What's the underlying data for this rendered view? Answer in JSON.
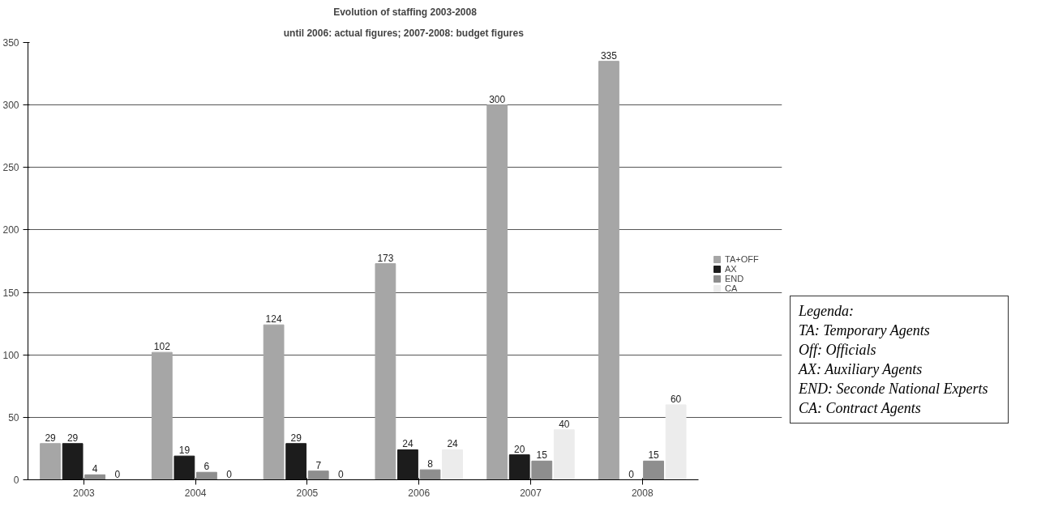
{
  "chart_data": {
    "type": "bar",
    "title": "Evolution of staffing 2003-2008",
    "subtitle": "until 2006: actual figures;  2007-2008: budget figures",
    "categories": [
      "2003",
      "2004",
      "2005",
      "2006",
      "2007",
      "2008"
    ],
    "series": [
      {
        "name": "TA+OFF",
        "color": "#a6a6a6",
        "values": [
          29,
          102,
          124,
          173,
          300,
          335
        ]
      },
      {
        "name": "AX",
        "color": "#1c1c1c",
        "values": [
          29,
          19,
          29,
          24,
          20,
          0
        ]
      },
      {
        "name": "END",
        "color": "#8e8e8e",
        "values": [
          4,
          6,
          7,
          8,
          15,
          15
        ]
      },
      {
        "name": "CA",
        "color": "#ececec",
        "values": [
          0,
          0,
          0,
          24,
          40,
          60
        ]
      }
    ],
    "ylim": [
      0,
      350
    ],
    "yticks": [
      0,
      50,
      100,
      150,
      200,
      250,
      300,
      350
    ],
    "grid": "y",
    "legend": "right",
    "data_labels": true,
    "annotations": [
      "Legenda:\nTA: Temporary Agents\nOff: Officials\nAX: Auxiliary Agents\nEND: Seconde National Experts\nCA: Contract Agents"
    ]
  }
}
